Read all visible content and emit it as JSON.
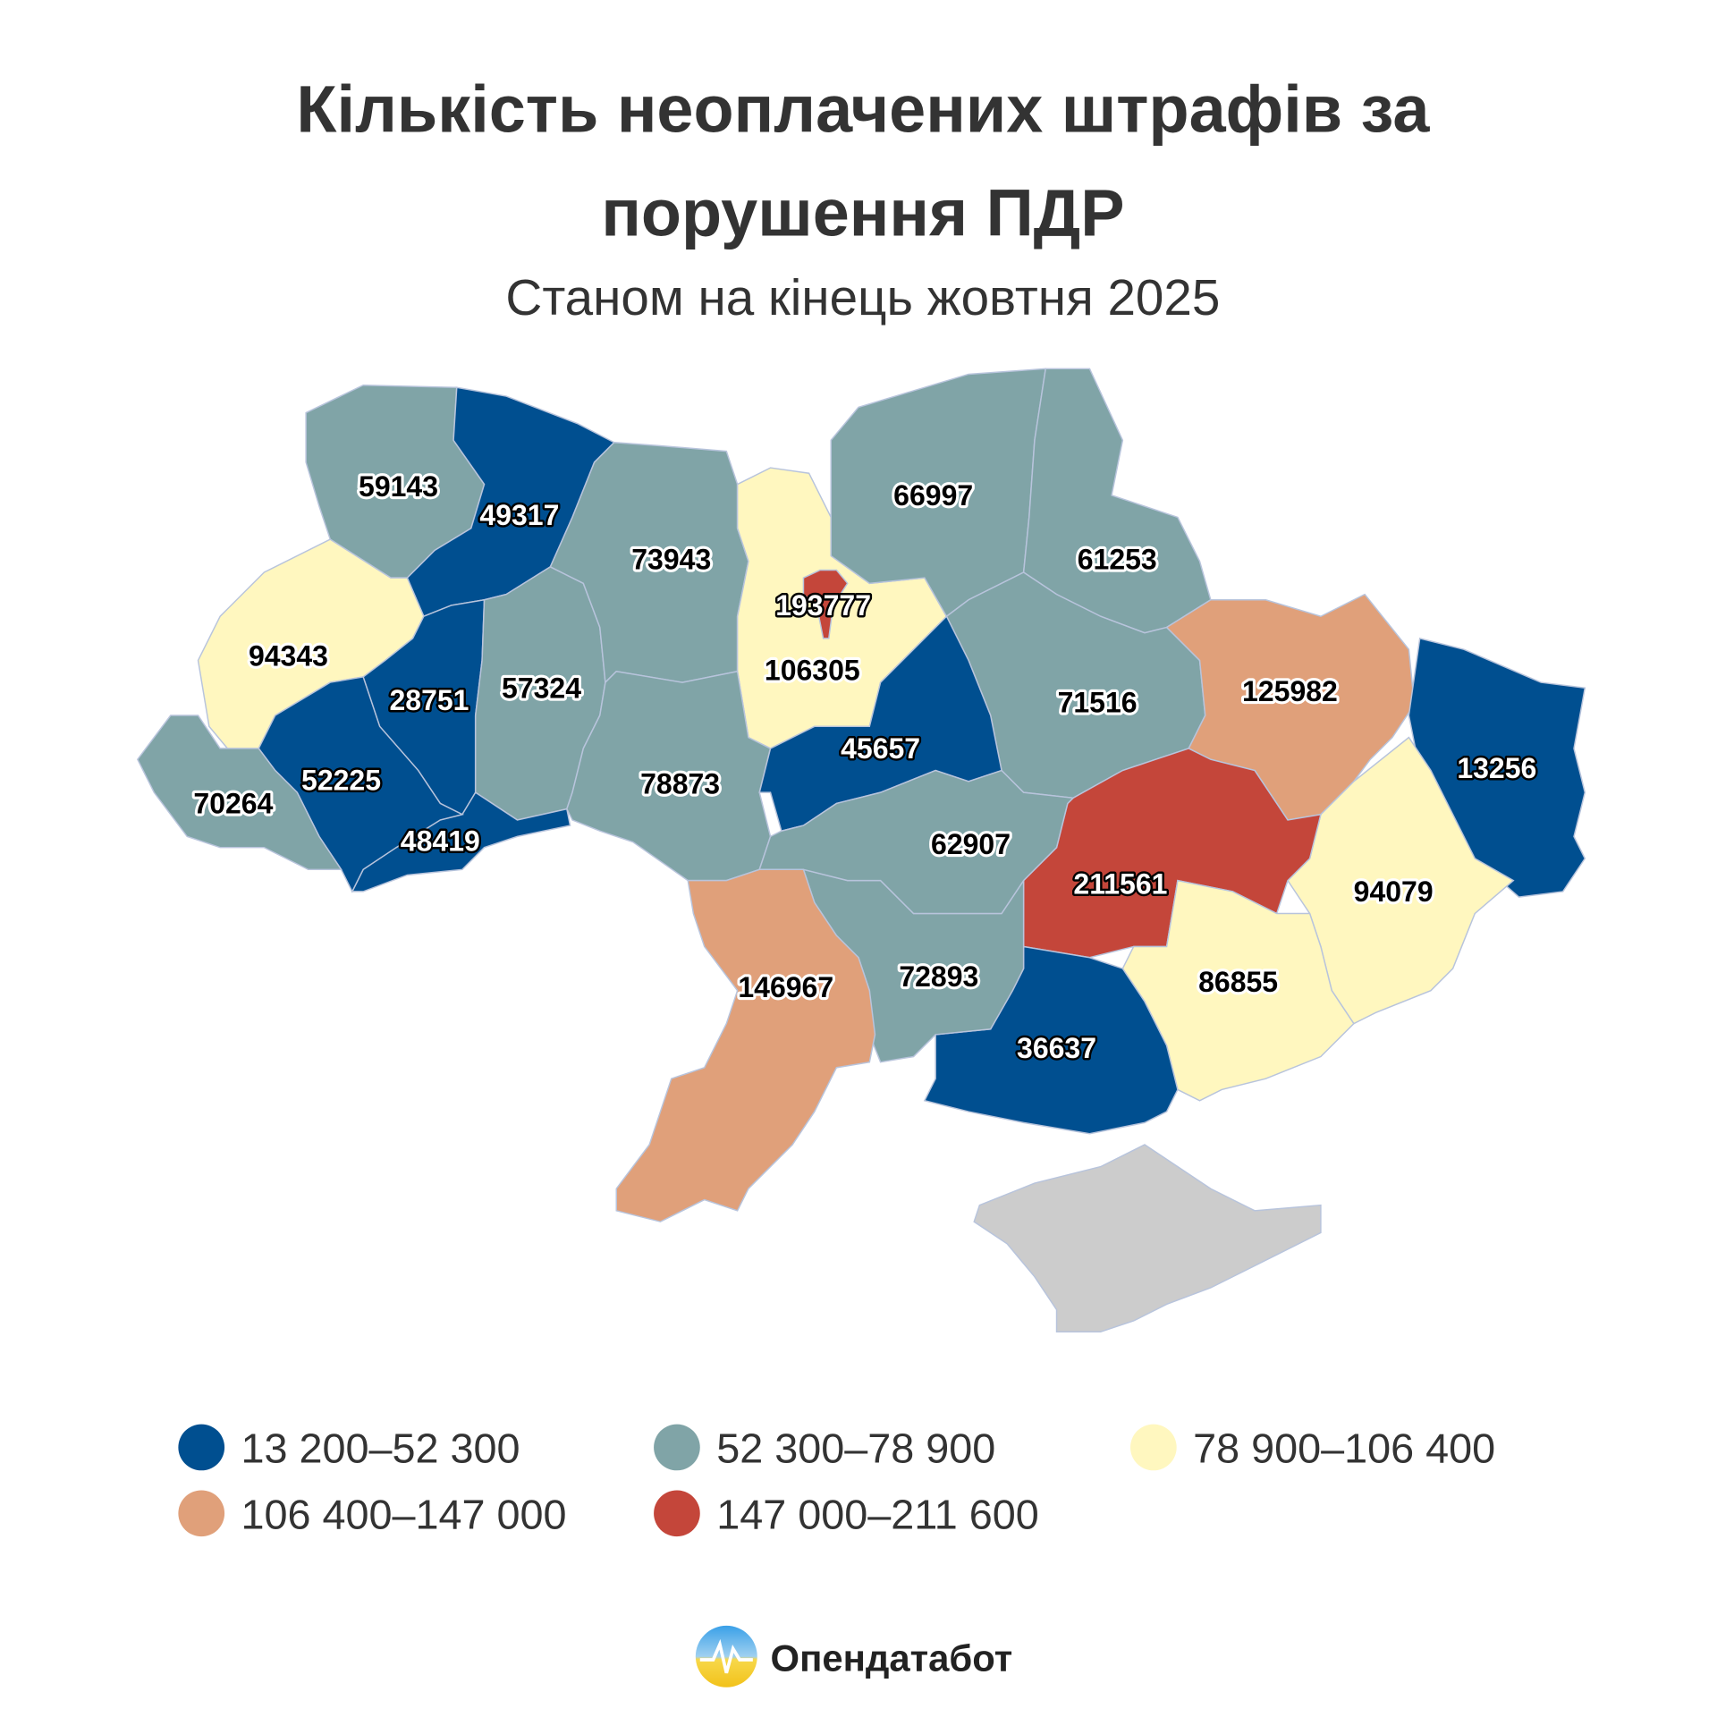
{
  "title_lines": [
    "Кількість неоплачених штрафів за",
    "порушення ПДР"
  ],
  "subtitle": "Станом на кінець жовтня 2025",
  "legend": [
    {
      "label": "13 200–52 300",
      "color": "#004f90",
      "min": 13200,
      "max": 52300
    },
    {
      "label": "52 300–78 900",
      "color": "#80a4a7",
      "min": 52300,
      "max": 78900
    },
    {
      "label": "78 900–106 400",
      "color": "#fff7bf",
      "min": 78900,
      "max": 106400
    },
    {
      "label": "106 400–147 000",
      "color": "#e0a07a",
      "min": 106400,
      "max": 147000
    },
    {
      "label": "147 000–211 600",
      "color": "#c4463a",
      "min": 147000,
      "max": 211600
    }
  ],
  "no_data_color": "#cccccc",
  "regions": [
    {
      "value": 59143
    },
    {
      "value": 49317
    },
    {
      "value": 94343
    },
    {
      "value": 28751
    },
    {
      "value": 57324
    },
    {
      "value": 73943
    },
    {
      "value": 106305
    },
    {
      "value": 193777
    },
    {
      "value": 78873
    },
    {
      "value": 66997
    },
    {
      "value": 61253
    },
    {
      "value": 71516
    },
    {
      "value": 45657
    },
    {
      "value": 125982
    },
    {
      "value": 13256
    },
    {
      "value": 94079
    },
    {
      "value": 211561
    },
    {
      "value": 86855
    },
    {
      "value": 36637
    },
    {
      "value": 72893
    },
    {
      "value": 62907
    },
    {
      "value": 146967
    },
    {
      "value": 48419
    },
    {
      "value": 52225
    },
    {
      "value": 70264
    }
  ],
  "brand": {
    "name": "Опендатабот",
    "logo_icon": "opendatabot-logo-icon"
  }
}
